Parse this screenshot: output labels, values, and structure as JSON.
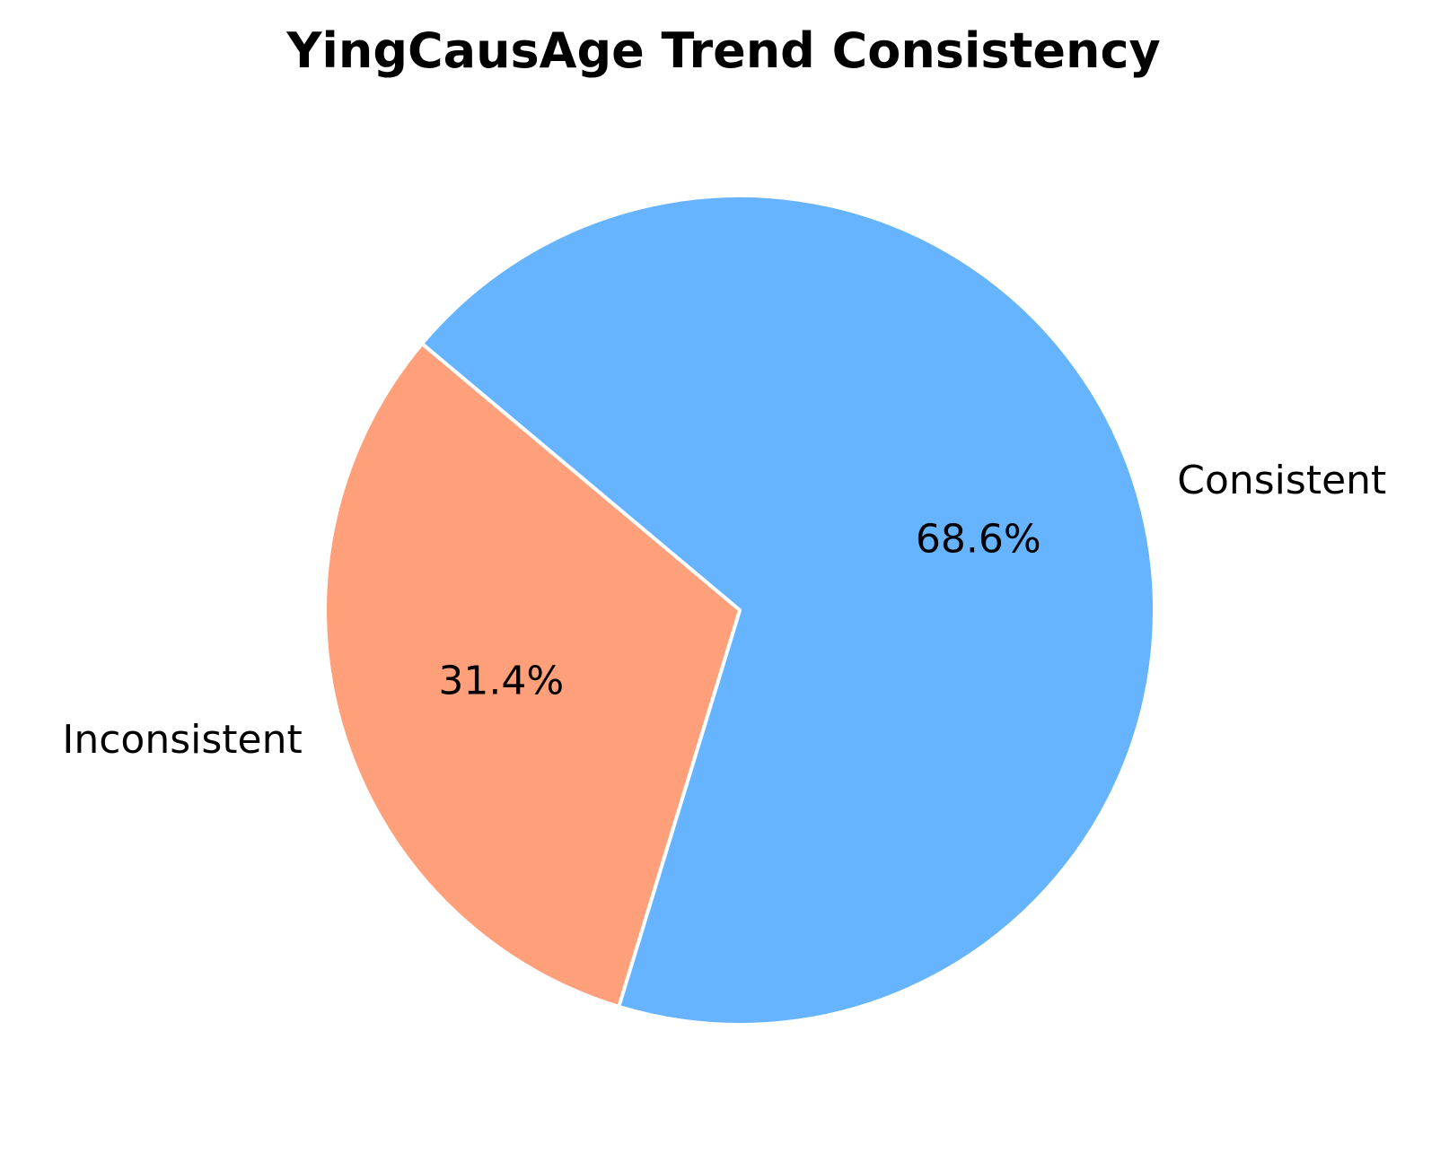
{
  "chart_data": {
    "type": "pie",
    "title": "YingCausAge Trend Consistency",
    "slices": [
      {
        "label": "Consistent",
        "value": 68.6,
        "pct_label": "68.6%",
        "color": "#66b3ff"
      },
      {
        "label": "Inconsistent",
        "value": 31.4,
        "pct_label": "31.4%",
        "color": "#ffa07a"
      }
    ],
    "edge_color": "#ffffff"
  }
}
